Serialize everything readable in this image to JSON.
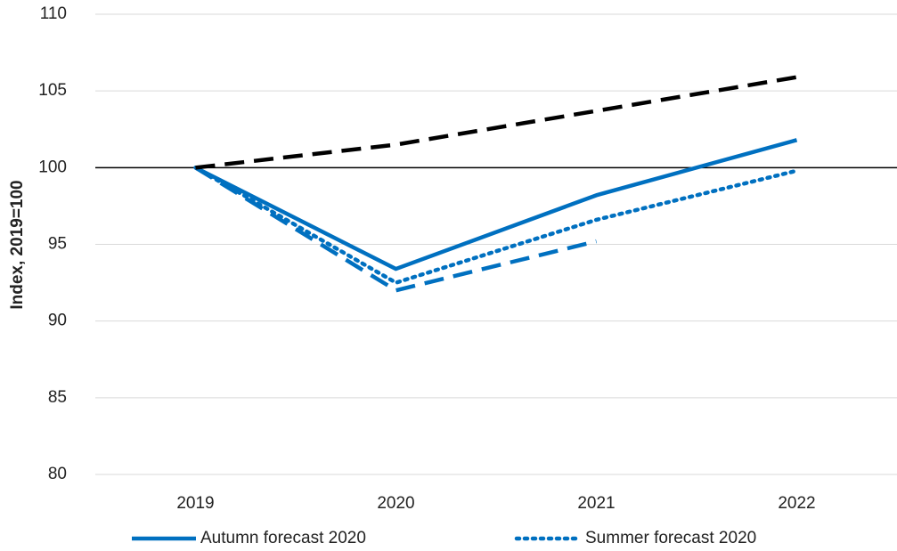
{
  "chart_data": {
    "type": "line",
    "y_label": "Index, 2019=100",
    "categories": [
      "2019",
      "2020",
      "2021",
      "2022"
    ],
    "series": [
      {
        "name": "Autumn forecast 2020",
        "color": "#0070C0",
        "dash": "solid",
        "values": [
          100,
          93.4,
          98.2,
          101.8
        ]
      },
      {
        "name": "Summer forecast 2020",
        "color": "#0070C0",
        "dash": "dotted",
        "values": [
          100,
          92.5,
          96.6,
          99.8
        ]
      },
      {
        "color": "#0070C0",
        "dash": "dashed",
        "values": [
          100,
          92.0,
          95.2,
          null
        ]
      },
      {
        "color": "#000000",
        "dash": "dashed",
        "values": [
          100,
          101.5,
          103.7,
          105.9
        ]
      }
    ],
    "reference_line": 100,
    "ylim": [
      80,
      110
    ],
    "yticks": [
      80,
      85,
      90,
      95,
      100,
      105,
      110
    ],
    "grid": true,
    "legend": "bottom"
  }
}
